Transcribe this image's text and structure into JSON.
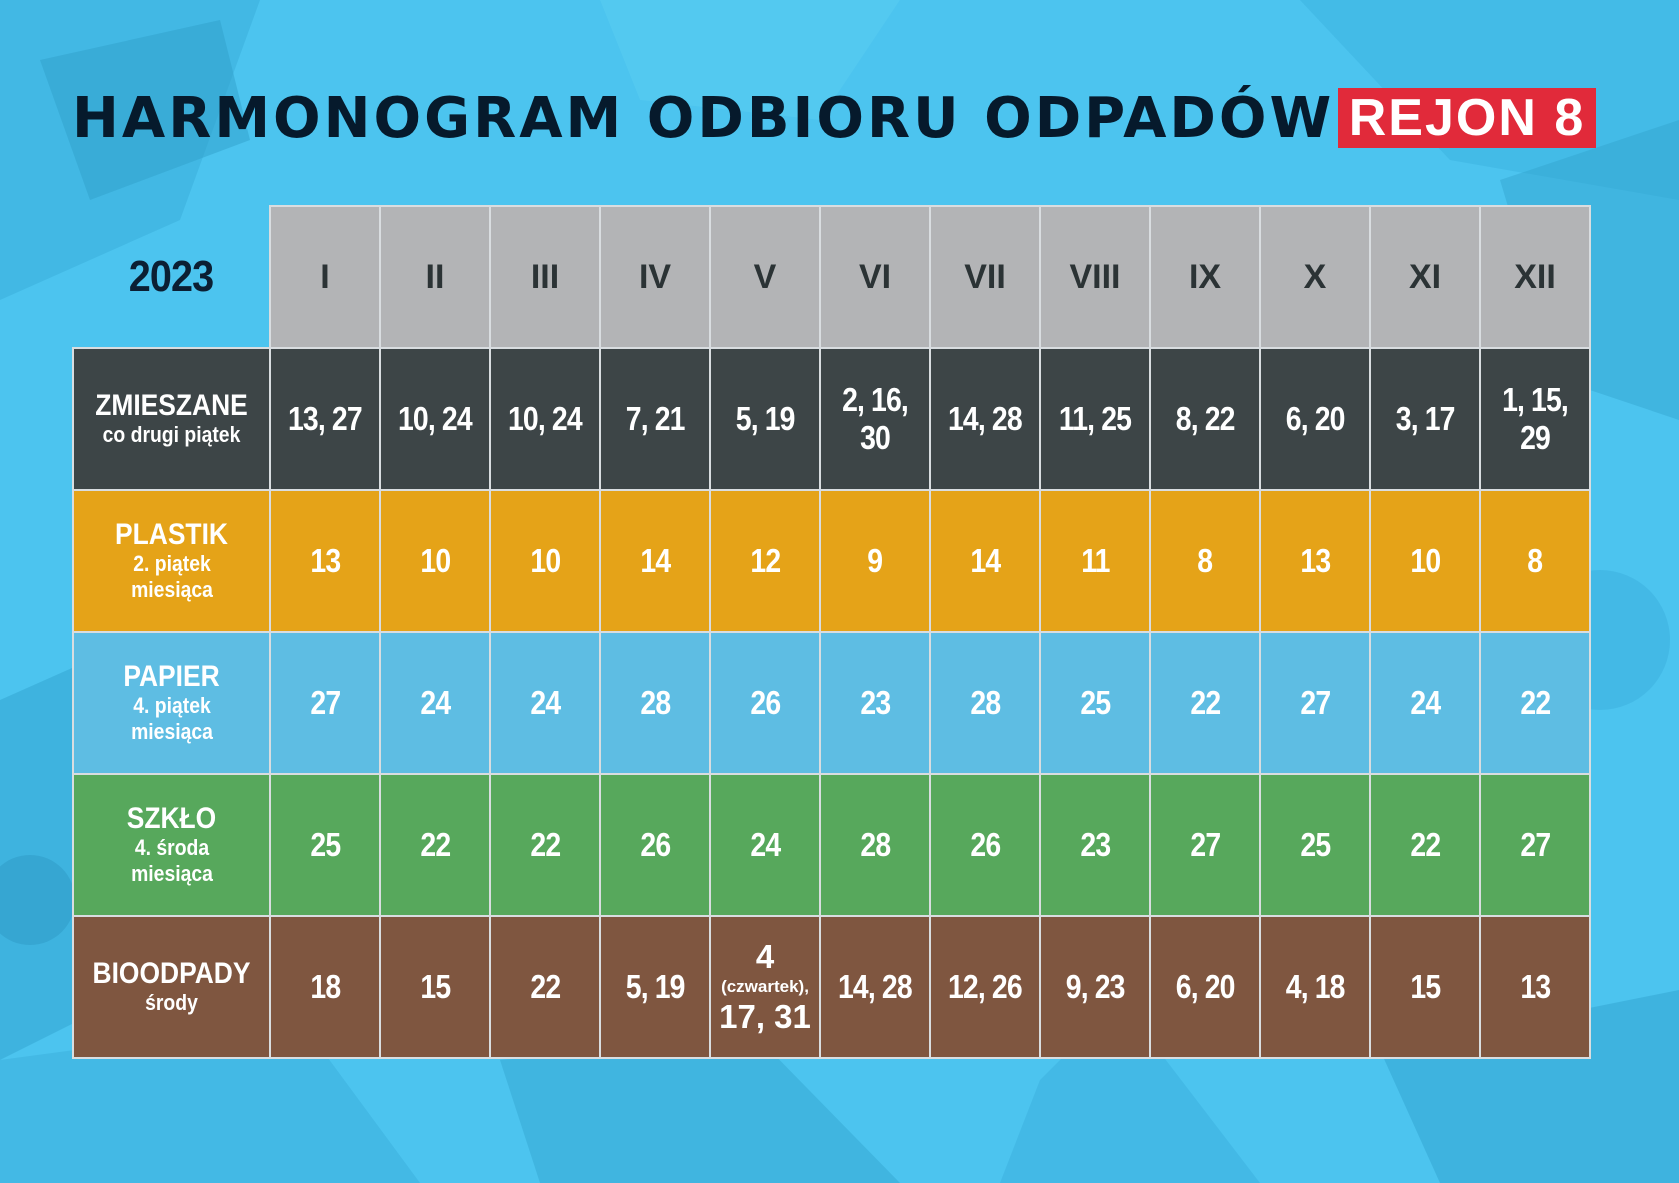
{
  "header": {
    "title": "HARMONOGRAM ODBIORU ODPADÓW",
    "region": "REJON 8"
  },
  "table": {
    "year": "2023",
    "months": [
      "I",
      "II",
      "III",
      "IV",
      "V",
      "VI",
      "VII",
      "VIII",
      "IX",
      "X",
      "XI",
      "XII"
    ],
    "rows": [
      {
        "name": "ZMIESZANE",
        "note": "co drugi piątek",
        "values": [
          "13, 27",
          "10, 24",
          "10, 24",
          "7, 21",
          "5, 19",
          "2, 16, 30",
          "14, 28",
          "11, 25",
          "8, 22",
          "6, 20",
          "3, 17",
          "1, 15, 29"
        ]
      },
      {
        "name": "PLASTIK",
        "note": "2. piątek miesiąca",
        "values": [
          "13",
          "10",
          "10",
          "14",
          "12",
          "9",
          "14",
          "11",
          "8",
          "13",
          "10",
          "8"
        ]
      },
      {
        "name": "PAPIER",
        "note": "4. piątek miesiąca",
        "values": [
          "27",
          "24",
          "24",
          "28",
          "26",
          "23",
          "28",
          "25",
          "22",
          "27",
          "24",
          "22"
        ]
      },
      {
        "name": "SZKŁO",
        "note": "4. środa miesiąca",
        "values": [
          "25",
          "22",
          "22",
          "26",
          "24",
          "28",
          "26",
          "23",
          "27",
          "25",
          "22",
          "27"
        ]
      },
      {
        "name": "BIOODPADY",
        "note": "środy",
        "values": [
          "18",
          "15",
          "22",
          "5, 19",
          "",
          "14, 28",
          "12, 26",
          "9, 23",
          "6, 20",
          "4, 18",
          "15",
          "13"
        ],
        "may_special": {
          "first": "4",
          "note": "(czwartek),",
          "rest": "17, 31"
        }
      }
    ]
  },
  "colors": {
    "background": "#4cc4ef",
    "title": "#061a2c",
    "region_badge": "#e12a3a",
    "month_header": "#b3b4b6",
    "mixed": "#3d4547",
    "plastic": "#e5a318",
    "paper": "#5ebde3",
    "glass": "#57a85c",
    "bio": "#7f5640"
  }
}
